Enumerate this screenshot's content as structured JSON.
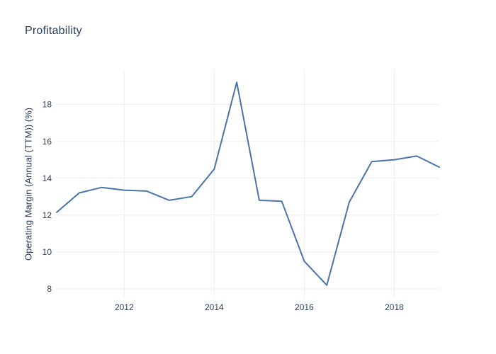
{
  "chart_data": {
    "type": "line",
    "title": "Profitability",
    "xlabel": "",
    "ylabel": "Operating Margin (Annual (TTM)) (%)",
    "x": [
      2010.5,
      2011,
      2011.5,
      2012,
      2012.5,
      2013,
      2013.5,
      2014,
      2014.5,
      2015,
      2015.5,
      2016,
      2016.5,
      2017,
      2017.5,
      2018,
      2018.5,
      2019
    ],
    "y": [
      12.15,
      13.2,
      13.5,
      13.35,
      13.3,
      12.8,
      13.0,
      14.5,
      19.2,
      12.8,
      12.75,
      9.5,
      8.2,
      12.7,
      14.9,
      15.0,
      15.2,
      14.6
    ],
    "x_ticks": [
      2012,
      2014,
      2016,
      2018
    ],
    "y_ticks": [
      8,
      10,
      12,
      14,
      16,
      18
    ],
    "x_range": [
      2010.5,
      2019
    ],
    "y_range": [
      7.5,
      19.9
    ],
    "grid": true,
    "legend_position": "none",
    "colors": {
      "line": "#4a74a8",
      "grid": "#e9eef6",
      "text": "#2a3f5f",
      "background": "#ffffff"
    }
  }
}
